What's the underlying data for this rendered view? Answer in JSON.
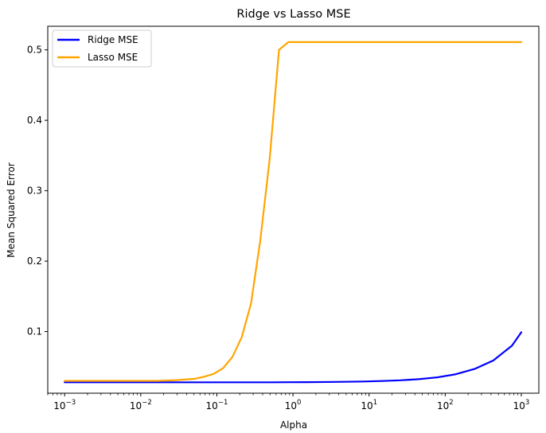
{
  "chart_data": {
    "type": "line",
    "title": "Ridge vs Lasso MSE",
    "xlabel": "Alpha",
    "ylabel": "Mean Squared Error",
    "xscale": "log",
    "xlim": [
      0.0006,
      1700
    ],
    "ylim": [
      0.0125,
      0.5335
    ],
    "grid": false,
    "legend_position": "top-left",
    "x_ticks": [
      {
        "value": 0.001,
        "base": "10",
        "exp": "−3"
      },
      {
        "value": 0.01,
        "base": "10",
        "exp": "−2"
      },
      {
        "value": 0.1,
        "base": "10",
        "exp": "−1"
      },
      {
        "value": 1,
        "base": "10",
        "exp": "0"
      },
      {
        "value": 10,
        "base": "10",
        "exp": "1"
      },
      {
        "value": 100,
        "base": "10",
        "exp": "2"
      },
      {
        "value": 1000,
        "base": "10",
        "exp": "3"
      }
    ],
    "y_ticks": [
      {
        "value": 0.1,
        "label": "0.1"
      },
      {
        "value": 0.2,
        "label": "0.2"
      },
      {
        "value": 0.3,
        "label": "0.3"
      },
      {
        "value": 0.4,
        "label": "0.4"
      },
      {
        "value": 0.5,
        "label": "0.5"
      }
    ],
    "series": [
      {
        "name": "Ridge MSE",
        "color": "#0000ff",
        "x": [
          0.001,
          0.001758,
          0.003089,
          0.005429,
          0.009541,
          0.01677,
          0.02947,
          0.05179,
          0.09103,
          0.16,
          0.2812,
          0.4942,
          0.8685,
          1.526,
          2.683,
          4.715,
          8.286,
          14.56,
          25.6,
          44.98,
          79.06,
          138.9,
          244.2,
          429.1,
          754.3,
          1000
        ],
        "values": [
          0.028,
          0.028,
          0.028,
          0.028,
          0.028,
          0.028,
          0.028,
          0.028,
          0.028,
          0.028,
          0.028,
          0.028,
          0.0281,
          0.0282,
          0.0284,
          0.0287,
          0.0291,
          0.0298,
          0.0308,
          0.0324,
          0.035,
          0.0395,
          0.047,
          0.059,
          0.08,
          0.099
        ]
      },
      {
        "name": "Lasso MSE",
        "color": "#ffa500",
        "x": [
          0.001,
          0.001758,
          0.003089,
          0.005429,
          0.009541,
          0.01677,
          0.02947,
          0.05179,
          0.06866,
          0.09103,
          0.1207,
          0.16,
          0.2121,
          0.2812,
          0.3728,
          0.4942,
          0.6551,
          0.8685,
          1.526,
          2.683,
          4.715,
          8.286,
          14.56,
          25.6,
          44.98,
          79.06,
          138.9,
          244.2,
          429.1,
          754.3,
          1000
        ],
        "values": [
          0.03,
          0.03,
          0.03,
          0.03,
          0.03,
          0.03,
          0.031,
          0.033,
          0.036,
          0.04,
          0.048,
          0.064,
          0.092,
          0.14,
          0.23,
          0.345,
          0.5,
          0.511,
          0.511,
          0.511,
          0.511,
          0.511,
          0.511,
          0.511,
          0.511,
          0.511,
          0.511,
          0.511,
          0.511,
          0.511,
          0.511
        ]
      }
    ]
  }
}
